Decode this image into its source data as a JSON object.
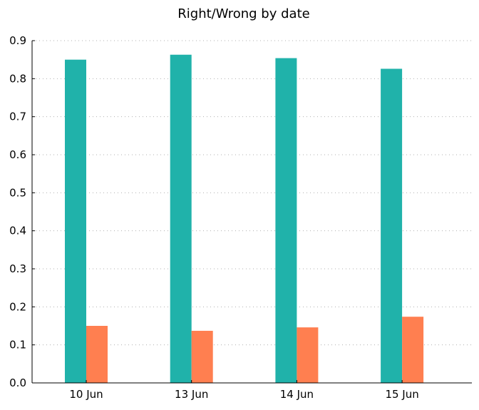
{
  "chart_data": {
    "type": "bar",
    "title": "Right/Wrong by date",
    "xlabel": "",
    "ylabel": "",
    "categories": [
      "10 Jun",
      "13 Jun",
      "14 Jun",
      "15 Jun"
    ],
    "series": [
      {
        "color": "#20b2aa",
        "values": [
          0.85,
          0.863,
          0.854,
          0.826
        ]
      },
      {
        "color": "#ff7f50",
        "values": [
          0.15,
          0.137,
          0.146,
          0.174
        ]
      }
    ],
    "ylim": [
      0,
      0.9
    ],
    "yticks": [
      "0.0",
      "0.1",
      "0.2",
      "0.3",
      "0.4",
      "0.5",
      "0.6",
      "0.7",
      "0.8",
      "0.9"
    ],
    "grid": "horizontal dotted",
    "legend": "none"
  }
}
